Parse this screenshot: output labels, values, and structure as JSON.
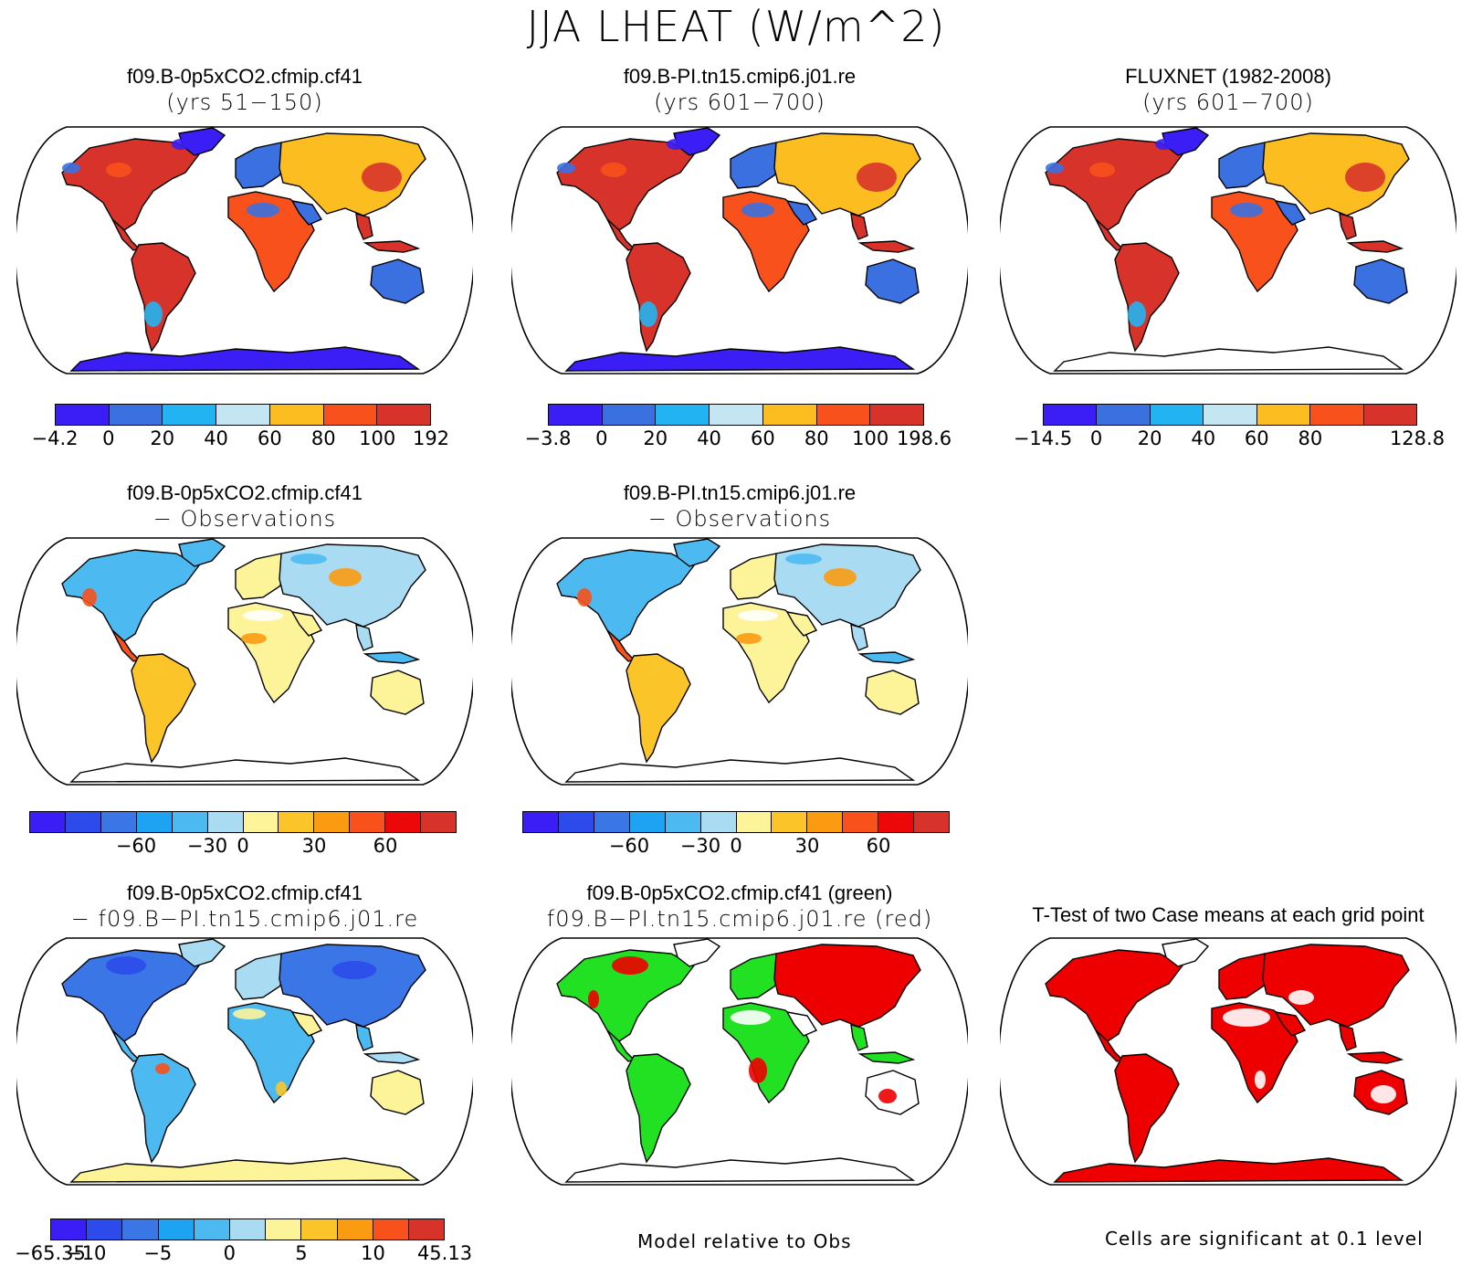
{
  "title": "JJA LHEAT (W/m^2)",
  "panels": [
    {
      "id": "p1",
      "line1": "f09.B-0p5xCO2.cfmip.cf41",
      "line2": "(yrs 51−150)",
      "palette": "full",
      "antarctica": "#3a1ef5"
    },
    {
      "id": "p2",
      "line1": "f09.B-PI.tn15.cmip6.j01.re",
      "line2": "(yrs 601−700)",
      "palette": "full",
      "antarctica": "#3a1ef5"
    },
    {
      "id": "p3",
      "line1": "FLUXNET (1982-2008)",
      "line2": "(yrs 601−700)",
      "palette": "full",
      "antarctica": "#ffffff"
    },
    {
      "id": "p4",
      "line1": "f09.B-0p5xCO2.cfmip.cf41",
      "line2": "− Observations",
      "palette": "diff",
      "antarctica": "#ffffff"
    },
    {
      "id": "p5",
      "line1": "f09.B-PI.tn15.cmip6.j01.re",
      "line2": "− Observations",
      "palette": "diff",
      "antarctica": "#ffffff"
    },
    {
      "id": "p6",
      "line1": "f09.B-0p5xCO2.cfmip.cf41",
      "line2": "− f09.B−PI.tn15.cmip6.j01.re",
      "palette": "diff2",
      "antarctica": "#fdf49a"
    },
    {
      "id": "p7",
      "line1": "f09.B-0p5xCO2.cfmip.cf41 (green)",
      "line2": "f09.B−PI.tn15.cmip6.j01.re (red)",
      "palette": "greenred",
      "antarctica": "#ffffff"
    },
    {
      "id": "p8",
      "line1": "T-Test of two Case means at each grid point",
      "line2": "",
      "palette": "sig",
      "antarctica": "#ee0000"
    }
  ],
  "colorbars": {
    "cb1": {
      "colors": [
        "#3a1ef5",
        "#3a70e0",
        "#22b4f2",
        "#c4e6f3",
        "#fbbd1f",
        "#f8511b",
        "#d8332a"
      ],
      "labels": [
        "−4.2",
        "0",
        "20",
        "40",
        "60",
        "80",
        "100",
        "192"
      ]
    },
    "cb2": {
      "colors": [
        "#3a1ef5",
        "#3a70e0",
        "#22b4f2",
        "#c4e6f3",
        "#fbbd1f",
        "#f8511b",
        "#d8332a"
      ],
      "labels": [
        "−3.8",
        "0",
        "20",
        "40",
        "60",
        "80",
        "100",
        "198.6"
      ]
    },
    "cb3": {
      "colors": [
        "#3a1ef5",
        "#3a70e0",
        "#22b4f2",
        "#c4e6f3",
        "#fbbd1f",
        "#f8511b",
        "#d8332a"
      ],
      "labels": [
        "−14.5",
        "0",
        "20",
        "40",
        "60",
        "80",
        "128.8"
      ]
    },
    "cb4": {
      "colors": [
        "#3a1ef5",
        "#2c4bea",
        "#3a76e6",
        "#1ea2f2",
        "#4cbaf0",
        "#a9dbf2",
        "#fdf49a",
        "#fbc52a",
        "#fb9b12",
        "#f8511b",
        "#ec0808",
        "#d8332a"
      ],
      "labels": [
        "−60",
        "−30",
        "0",
        "30",
        "60"
      ]
    },
    "cb5": {
      "colors": [
        "#3a1ef5",
        "#2c4bea",
        "#3a76e6",
        "#1ea2f2",
        "#4cbaf0",
        "#a9dbf2",
        "#fdf49a",
        "#fbc52a",
        "#fb9b12",
        "#f8511b",
        "#ec0808",
        "#d8332a"
      ],
      "labels": [
        "−60",
        "−30",
        "0",
        "30",
        "60"
      ]
    },
    "cb6": {
      "colors": [
        "#3a1ef5",
        "#2c4bea",
        "#3a76e6",
        "#1ea2f2",
        "#4cbaf0",
        "#a9dbf2",
        "#fdf49a",
        "#fbc52a",
        "#fb9b12",
        "#f8511b",
        "#ec0808",
        "#d8332a"
      ],
      "labels": [
        "−65.35",
        "−10",
        "−5",
        "0",
        "5",
        "10",
        "45.13"
      ]
    }
  },
  "notes": {
    "model_rel": "Model relative to Obs",
    "significance": "Cells are significant at 0.1 level"
  }
}
